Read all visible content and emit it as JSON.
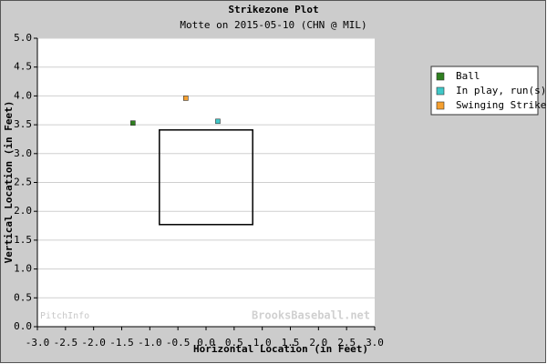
{
  "chart_data": {
    "type": "scatter",
    "title": "Strikezone Plot",
    "subtitle": "Motte on 2015-05-10 (CHN @ MIL)",
    "x_label": "Horizontal Location (in Feet)",
    "y_label": "Vertical Location (in Feet)",
    "watermarks": [
      "PitchInfo",
      "BrooksBaseball.net"
    ],
    "xlim": [
      -3,
      3
    ],
    "ylim": [
      0,
      5
    ],
    "xticks": [
      {
        "value": -3,
        "label": "-3.0"
      },
      -2.5,
      {
        "value": -2,
        "label": "-2.0"
      },
      -1.5,
      {
        "value": -1,
        "label": "-1.0"
      },
      -0.5,
      {
        "value": 0,
        "label": "0.0"
      },
      0.5,
      {
        "value": 1,
        "label": "1.0"
      },
      1.5,
      {
        "value": 2,
        "label": "2.0"
      },
      2.5,
      {
        "value": 3,
        "label": "3.0"
      }
    ],
    "yticks": [
      {
        "value": 0,
        "label": "0.0"
      },
      0.5,
      {
        "value": 1,
        "label": "1.0"
      },
      1.5,
      {
        "value": 2,
        "label": "2.0"
      },
      2.5,
      {
        "value": 3,
        "label": "3.0"
      },
      3.5,
      {
        "value": 4,
        "label": "4.0"
      },
      4.5,
      {
        "value": 5,
        "label": "5.0"
      }
    ],
    "grid": true,
    "strike_zone": {
      "x": [
        -0.83,
        0.83
      ],
      "y": [
        1.77,
        3.41
      ]
    },
    "series": [
      {
        "name": "Ball",
        "color": "#2f7f1f",
        "x": [
          -1.3
        ],
        "values": [
          3.53
        ]
      },
      {
        "name": "In play, run(s)",
        "color": "#3fc8c8",
        "x": [
          0.21
        ],
        "values": [
          3.56
        ]
      },
      {
        "name": "Swinging Strike",
        "color": "#f5a030",
        "x": [
          -0.36
        ],
        "values": [
          3.96
        ]
      }
    ]
  }
}
